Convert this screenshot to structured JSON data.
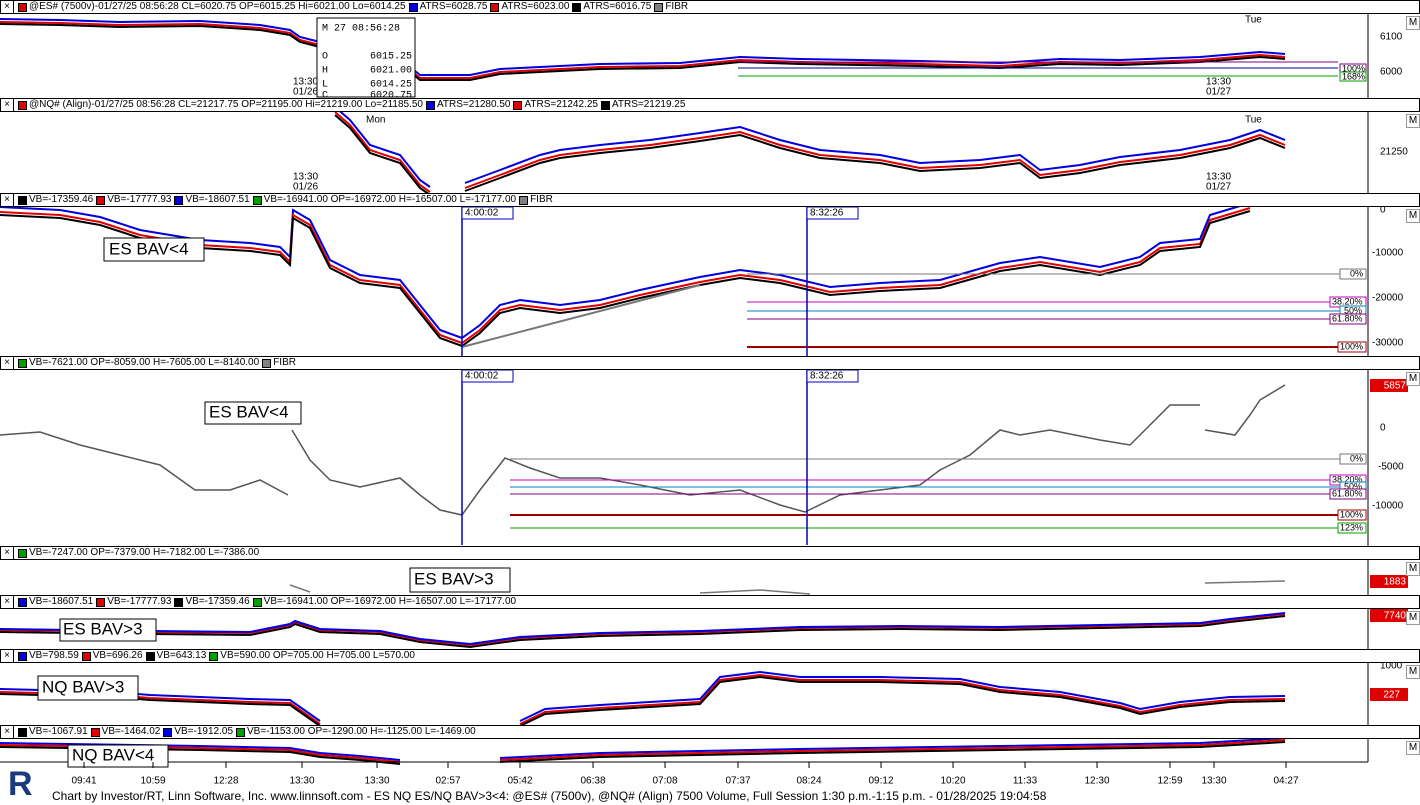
{
  "panes": [
    {
      "legend": [
        {
          "text": "@ES# (7500v)-01/27/25 08:56:28 CL=6020.75 OP=6015.25 Hi=6021.00 Lo=6014.25",
          "color": "#e00000"
        },
        {
          "text": "ATRS=6028.75",
          "color": "#0000e0"
        },
        {
          "text": "ATRS=6023.00",
          "color": "#e00000"
        },
        {
          "text": "ATRS=6016.75",
          "color": "#000000"
        },
        {
          "text": "FIBR",
          "color": "#808080"
        }
      ],
      "axis": [
        "6100",
        "6000"
      ],
      "fib": [
        "100%",
        "168%"
      ],
      "time_marks": [
        "Tue",
        "13:30",
        "01/26",
        "13:30",
        "01/27"
      ],
      "tooltip": {
        "time": "M 27 08:56:28",
        "rows": [
          [
            "O",
            "6015.25"
          ],
          [
            "H",
            "6021.00"
          ],
          [
            "L",
            "6014.25"
          ],
          [
            "C",
            "6020.75"
          ]
        ]
      }
    },
    {
      "legend": [
        {
          "text": "@NQ# (Align)-01/27/25 08:56:28 CL=21217.75 OP=21195.00 Hi=21219.00 Lo=21185.50",
          "color": "#e00000"
        },
        {
          "text": "ATRS=21280.50",
          "color": "#0000e0"
        },
        {
          "text": "ATRS=21242.25",
          "color": "#e00000"
        },
        {
          "text": "ATRS=21219.25",
          "color": "#000000"
        }
      ],
      "axis": [
        "21250"
      ],
      "time_marks": [
        "Mon",
        "Tue",
        "13:30",
        "01/26",
        "13:30",
        "01/27"
      ]
    },
    {
      "legend": [
        {
          "text": "VB=-17359.46",
          "color": "#000000"
        },
        {
          "text": "VB=-17777.93",
          "color": "#e00000"
        },
        {
          "text": "VB=-18607.51",
          "color": "#0000e0"
        },
        {
          "text": "VB=-16941.00 OP=-16972.00 H=-16507.00 L=-17177.00",
          "color": "#00a000"
        },
        {
          "text": "FIBR",
          "color": "#808080"
        }
      ],
      "axis": [
        "0",
        "-10000",
        "-20000",
        "-30000"
      ],
      "annotation": "ES BAV<4",
      "markers": [
        "4:00:02",
        "8:32:26"
      ],
      "fib": [
        "0%",
        "38.20%",
        "50%",
        "61.80%",
        "100%"
      ]
    },
    {
      "legend": [
        {
          "text": "VB=-7621.00 OP=-8059.00 H=-7605.00 L=-8140.00",
          "color": "#00a000"
        },
        {
          "text": "FIBR",
          "color": "#808080"
        }
      ],
      "axis": [
        "5857",
        "0",
        "-5000",
        "-10000"
      ],
      "annotation": "ES BAV<4",
      "markers": [
        "4:00:02",
        "8:32:26"
      ],
      "fib": [
        "0%",
        "38.20%",
        "50%",
        "61.80%",
        "100%",
        "123%"
      ]
    },
    {
      "legend": [
        {
          "text": "VB=-7247.00 OP=-7379.00 H=-7182.00 L=-7386.00",
          "color": "#00a000"
        }
      ],
      "axis": [
        "1883"
      ],
      "annotation": "ES BAV>3"
    },
    {
      "legend": [
        {
          "text": "VB=-18607.51",
          "color": "#0000e0"
        },
        {
          "text": "VB=-17777.93",
          "color": "#e00000"
        },
        {
          "text": "VB=-17359.46",
          "color": "#000000"
        },
        {
          "text": "VB=-16941.00 OP=-16972.00 H=-16507.00 L=-17177.00",
          "color": "#00a000"
        }
      ],
      "axis": [
        "7740"
      ],
      "annotation": "ES BAV>3"
    },
    {
      "legend": [
        {
          "text": "VB=798.59",
          "color": "#0000e0"
        },
        {
          "text": "VB=696.26",
          "color": "#e00000"
        },
        {
          "text": "VB=643.13",
          "color": "#000000"
        },
        {
          "text": "VB=590.00 OP=705.00 H=705.00 L=570.00",
          "color": "#00a000"
        }
      ],
      "axis": [
        "1000",
        "227"
      ],
      "annotation": "NQ BAV>3"
    },
    {
      "legend": [
        {
          "text": "VB=-1067.91",
          "color": "#000000"
        },
        {
          "text": "VB=-1464.02",
          "color": "#e00000"
        },
        {
          "text": "VB=-1912.05",
          "color": "#0000e0"
        },
        {
          "text": "VB=-1153.00 OP=-1290.00 H=-1125.00 L=-1469.00",
          "color": "#00a000"
        }
      ],
      "annotation": "NQ BAV<4"
    }
  ],
  "time_axis": [
    "09:41",
    "10:59",
    "12:28",
    "13:30",
    "13:30",
    "02:57",
    "05:42",
    "06:38",
    "07:08",
    "07:37",
    "08:24",
    "09:12",
    "10:20",
    "11:33",
    "12:30",
    "12:59",
    "13:30",
    "04:27"
  ],
  "logo": "R",
  "footer": "Chart by Investor/RT, Linn Software, Inc. www.linnsoft.com - ES NQ ES/NQ BAV>3<4: @ES# (7500v), @NQ# (Align) 7500 Volume, Full Session 1:30 p.m.-1:15 p.m. - 01/28/2025 19:04:58"
}
